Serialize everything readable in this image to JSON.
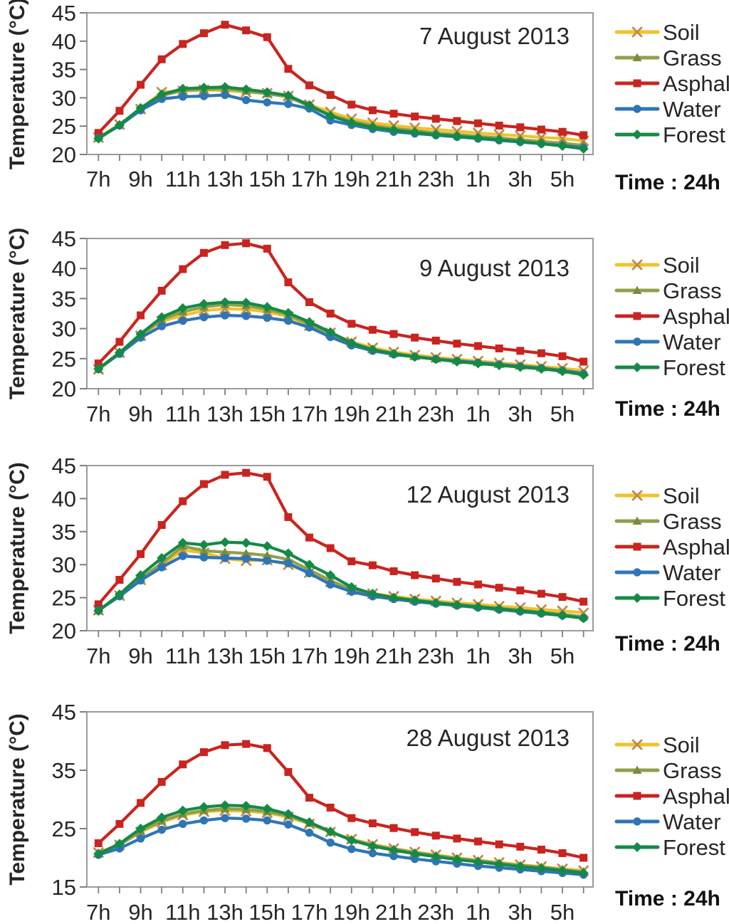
{
  "figure": {
    "ylabel": "Temperature (°C)",
    "time_note": "Time : 24h",
    "legend_labels": [
      "Soil",
      "Grass",
      "Asphalt",
      "Water",
      "Forest"
    ],
    "colors": {
      "soil_line": "#EFC32A",
      "soil_marker": "#C18A4A",
      "grass_line": "#8FA04E",
      "grass_marker": "#7C8C3C",
      "asphalt_line": "#C9241F",
      "asphalt_marker": "#C9241F",
      "water_line": "#2E75B6",
      "water_marker": "#2E75B6",
      "forest_line": "#148A47",
      "forest_marker": "#148A47",
      "plot_border": "#9b9b9b",
      "axis_tick": "#7f7f7f",
      "text": "#262626"
    }
  },
  "chart_data": [
    {
      "type": "line",
      "title": "7 August 2013",
      "ylabel": "Temperature (°C)",
      "xlabel": "",
      "ylim": [
        20,
        45
      ],
      "yticks": [
        20,
        25,
        30,
        35,
        40,
        45
      ],
      "grid": false,
      "legend_position": "right",
      "categories": [
        "7h",
        "8h",
        "9h",
        "10h",
        "11h",
        "12h",
        "13h",
        "14h",
        "15h",
        "16h",
        "17h",
        "18h",
        "19h",
        "20h",
        "21h",
        "22h",
        "23h",
        "0h",
        "1h",
        "2h",
        "3h",
        "4h",
        "5h",
        "6h"
      ],
      "xtick_labels": [
        "7h",
        "9h",
        "11h",
        "13h",
        "15h",
        "17h",
        "19h",
        "21h",
        "23h",
        "1h",
        "3h",
        "5h"
      ],
      "series": [
        {
          "name": "Soil",
          "values": [
            23.0,
            25.3,
            28.0,
            31.0,
            31.2,
            31.4,
            31.3,
            31.0,
            30.8,
            30.3,
            28.8,
            27.5,
            26.3,
            25.6,
            25.1,
            24.7,
            24.4,
            24.1,
            23.8,
            23.5,
            23.3,
            23.0,
            22.8,
            22.4
          ]
        },
        {
          "name": "Grass",
          "values": [
            22.9,
            25.2,
            28.0,
            30.4,
            31.3,
            31.5,
            31.6,
            31.2,
            30.7,
            30.2,
            28.5,
            27.0,
            25.9,
            25.1,
            24.6,
            24.2,
            23.8,
            23.5,
            23.2,
            22.9,
            22.6,
            22.3,
            22.0,
            21.6
          ]
        },
        {
          "name": "Asphalt",
          "values": [
            23.8,
            27.7,
            32.3,
            36.8,
            39.5,
            41.4,
            42.9,
            41.9,
            40.7,
            35.1,
            32.2,
            30.5,
            28.8,
            27.8,
            27.2,
            26.7,
            26.3,
            25.9,
            25.5,
            25.1,
            24.8,
            24.4,
            24.0,
            23.4
          ]
        },
        {
          "name": "Water",
          "values": [
            22.9,
            25.1,
            27.8,
            29.8,
            30.2,
            30.3,
            30.5,
            29.6,
            29.2,
            28.9,
            28.1,
            26.0,
            25.2,
            24.5,
            24.0,
            23.7,
            23.4,
            23.1,
            22.8,
            22.5,
            22.2,
            21.9,
            21.6,
            21.2
          ]
        },
        {
          "name": "Forest",
          "values": [
            22.8,
            25.2,
            28.2,
            30.6,
            31.6,
            31.8,
            31.9,
            31.5,
            31.0,
            30.4,
            28.7,
            26.8,
            25.6,
            24.8,
            24.3,
            23.9,
            23.5,
            23.2,
            22.9,
            22.6,
            22.3,
            21.9,
            21.5,
            21.0
          ]
        }
      ]
    },
    {
      "type": "line",
      "title": "9 August 2013",
      "ylabel": "Temperature (°C)",
      "xlabel": "",
      "ylim": [
        20,
        45
      ],
      "yticks": [
        20,
        25,
        30,
        35,
        40,
        45
      ],
      "grid": false,
      "legend_position": "right",
      "categories": [
        "7h",
        "8h",
        "9h",
        "10h",
        "11h",
        "12h",
        "13h",
        "14h",
        "15h",
        "16h",
        "17h",
        "18h",
        "19h",
        "20h",
        "21h",
        "22h",
        "23h",
        "0h",
        "1h",
        "2h",
        "3h",
        "4h",
        "5h",
        "6h"
      ],
      "xtick_labels": [
        "7h",
        "9h",
        "11h",
        "13h",
        "15h",
        "17h",
        "19h",
        "21h",
        "23h",
        "1h",
        "3h",
        "5h"
      ],
      "series": [
        {
          "name": "Soil",
          "values": [
            23.2,
            26.0,
            28.8,
            31.2,
            32.2,
            33.0,
            33.3,
            33.2,
            32.8,
            32.0,
            30.5,
            29.3,
            27.8,
            26.8,
            26.1,
            25.6,
            25.2,
            24.9,
            24.6,
            24.3,
            24.0,
            23.7,
            23.4,
            23.0
          ]
        },
        {
          "name": "Grass",
          "values": [
            23.2,
            25.9,
            28.9,
            31.5,
            32.8,
            33.6,
            34.0,
            33.8,
            33.2,
            32.3,
            30.7,
            29.2,
            27.5,
            26.5,
            25.9,
            25.4,
            25.0,
            24.7,
            24.4,
            24.1,
            23.8,
            23.5,
            23.1,
            22.6
          ]
        },
        {
          "name": "Asphalt",
          "values": [
            24.2,
            27.8,
            32.2,
            36.3,
            39.9,
            42.6,
            43.9,
            44.2,
            43.3,
            37.7,
            34.4,
            32.5,
            30.8,
            29.8,
            29.1,
            28.5,
            28.0,
            27.5,
            27.1,
            26.7,
            26.3,
            25.9,
            25.4,
            24.5
          ]
        },
        {
          "name": "Water",
          "values": [
            23.3,
            25.8,
            28.5,
            30.4,
            31.3,
            31.9,
            32.2,
            32.1,
            31.8,
            31.3,
            30.2,
            28.6,
            27.2,
            26.3,
            25.7,
            25.3,
            24.9,
            24.6,
            24.3,
            24.0,
            23.7,
            23.4,
            23.0,
            22.5
          ]
        },
        {
          "name": "Forest",
          "values": [
            23.3,
            26.0,
            29.1,
            31.9,
            33.4,
            34.1,
            34.4,
            34.3,
            33.6,
            32.6,
            31.1,
            29.4,
            27.6,
            26.5,
            25.8,
            25.3,
            24.9,
            24.5,
            24.2,
            23.9,
            23.6,
            23.3,
            22.9,
            22.3
          ]
        }
      ]
    },
    {
      "type": "line",
      "title": "12 August 2013",
      "ylabel": "Temperature (°C)",
      "xlabel": "",
      "ylim": [
        20,
        45
      ],
      "yticks": [
        20,
        25,
        30,
        35,
        40,
        45
      ],
      "grid": false,
      "legend_position": "right",
      "categories": [
        "7h",
        "8h",
        "9h",
        "10h",
        "11h",
        "12h",
        "13h",
        "14h",
        "15h",
        "16h",
        "17h",
        "18h",
        "19h",
        "20h",
        "21h",
        "22h",
        "23h",
        "0h",
        "1h",
        "2h",
        "3h",
        "4h",
        "5h",
        "6h"
      ],
      "xtick_labels": [
        "7h",
        "9h",
        "11h",
        "13h",
        "15h",
        "17h",
        "19h",
        "21h",
        "23h",
        "1h",
        "3h",
        "5h"
      ],
      "series": [
        {
          "name": "Soil",
          "values": [
            23.1,
            25.3,
            27.7,
            29.9,
            32.2,
            31.8,
            30.9,
            30.6,
            30.7,
            30.0,
            28.8,
            27.4,
            26.2,
            25.6,
            25.2,
            24.8,
            24.5,
            24.2,
            24.0,
            23.7,
            23.5,
            23.2,
            23.0,
            22.7
          ]
        },
        {
          "name": "Grass",
          "values": [
            23.0,
            25.4,
            27.9,
            30.2,
            32.8,
            32.1,
            31.9,
            31.7,
            31.4,
            30.8,
            29.2,
            27.6,
            26.2,
            25.5,
            25.0,
            24.6,
            24.3,
            24.0,
            23.7,
            23.4,
            23.1,
            22.8,
            22.5,
            22.1
          ]
        },
        {
          "name": "Asphalt",
          "values": [
            24.0,
            27.7,
            31.6,
            36.0,
            39.6,
            42.2,
            43.6,
            43.9,
            43.3,
            37.2,
            34.1,
            32.5,
            30.5,
            29.9,
            29.0,
            28.4,
            27.9,
            27.4,
            27.0,
            26.5,
            26.1,
            25.6,
            25.1,
            24.4
          ]
        },
        {
          "name": "Water",
          "values": [
            23.1,
            25.2,
            27.6,
            29.6,
            31.3,
            31.1,
            31.0,
            30.9,
            30.6,
            30.2,
            28.7,
            27.0,
            25.9,
            25.2,
            24.8,
            24.4,
            24.1,
            23.8,
            23.5,
            23.2,
            22.9,
            22.6,
            22.3,
            21.9
          ]
        },
        {
          "name": "Forest",
          "values": [
            23.0,
            25.5,
            28.4,
            31.0,
            33.3,
            33.0,
            33.4,
            33.3,
            32.8,
            31.7,
            30.0,
            28.4,
            26.6,
            25.6,
            25.0,
            24.6,
            24.2,
            23.9,
            23.6,
            23.3,
            23.0,
            22.7,
            22.3,
            21.9
          ]
        }
      ]
    },
    {
      "type": "line",
      "title": "28 August 2013",
      "ylabel": "Temperature (°C)",
      "xlabel": "",
      "ylim": [
        15,
        45
      ],
      "yticks": [
        15,
        25,
        35,
        45
      ],
      "grid": false,
      "legend_position": "right",
      "categories": [
        "7h",
        "8h",
        "9h",
        "10h",
        "11h",
        "12h",
        "13h",
        "14h",
        "15h",
        "16h",
        "17h",
        "18h",
        "19h",
        "20h",
        "21h",
        "22h",
        "23h",
        "0h",
        "1h",
        "2h",
        "3h",
        "4h",
        "5h",
        "6h"
      ],
      "xtick_labels": [
        "7h",
        "9h",
        "11h",
        "13h",
        "15h",
        "17h",
        "19h",
        "21h",
        "23h",
        "1h",
        "3h",
        "5h"
      ],
      "series": [
        {
          "name": "Soil",
          "values": [
            20.9,
            22.2,
            24.4,
            26.1,
            27.3,
            27.9,
            28.1,
            28.0,
            27.7,
            27.0,
            25.8,
            24.4,
            23.2,
            22.3,
            21.6,
            21.0,
            20.5,
            20.0,
            19.6,
            19.2,
            18.8,
            18.5,
            18.1,
            17.8
          ]
        },
        {
          "name": "Grass",
          "values": [
            20.8,
            22.2,
            24.6,
            26.3,
            27.5,
            28.1,
            28.4,
            28.3,
            27.9,
            27.2,
            25.9,
            24.4,
            23.1,
            22.2,
            21.5,
            20.9,
            20.4,
            19.9,
            19.5,
            19.1,
            18.7,
            18.4,
            18.0,
            17.6
          ]
        },
        {
          "name": "Asphalt",
          "values": [
            22.5,
            25.8,
            29.4,
            33.0,
            36.0,
            38.1,
            39.3,
            39.5,
            38.8,
            34.7,
            30.3,
            28.6,
            26.8,
            25.9,
            25.1,
            24.4,
            23.8,
            23.3,
            22.8,
            22.3,
            21.9,
            21.4,
            20.8,
            20.0
          ]
        },
        {
          "name": "Water",
          "values": [
            20.5,
            21.6,
            23.3,
            24.8,
            25.8,
            26.4,
            26.8,
            26.7,
            26.4,
            25.7,
            24.3,
            22.6,
            21.5,
            20.8,
            20.3,
            19.8,
            19.4,
            19.0,
            18.6,
            18.3,
            18.0,
            17.7,
            17.4,
            17.1
          ]
        },
        {
          "name": "Forest",
          "values": [
            20.7,
            22.4,
            25.0,
            26.9,
            28.1,
            28.7,
            29.0,
            28.9,
            28.4,
            27.5,
            26.1,
            24.5,
            23.0,
            22.0,
            21.3,
            20.7,
            20.2,
            19.7,
            19.3,
            18.9,
            18.5,
            18.2,
            17.8,
            17.4
          ]
        }
      ]
    }
  ]
}
